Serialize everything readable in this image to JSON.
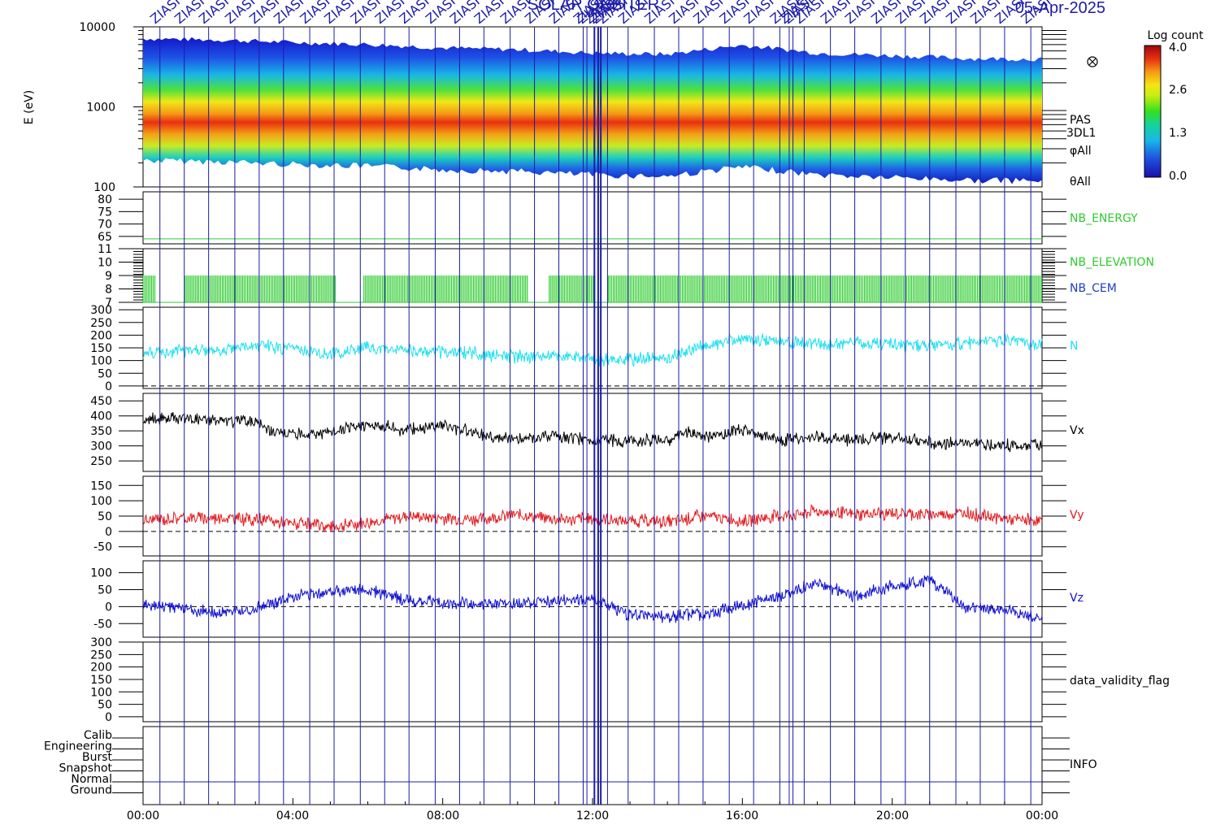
{
  "header": {
    "title_text": "SOLAR ORBITER",
    "date_text": "05-Apr-2025",
    "event_label": "ZIASI"
  },
  "colorbar": {
    "title": "Log count",
    "ticks": [
      "4.0",
      "2.6",
      "1.3",
      "0.0"
    ]
  },
  "time_axis": {
    "labels": [
      "00:00",
      "04:00",
      "08:00",
      "12:00",
      "16:00",
      "20:00",
      "00:00"
    ]
  },
  "colors": {
    "nb_energy": "#2ecc2e",
    "nb_cem": "#1f3fbf",
    "n": "#22e0ef",
    "vx": "#000000",
    "vy": "#e41a1c",
    "vz": "#1010d0",
    "event_line": "#1c1ca8"
  },
  "chart_data": {
    "type": "line",
    "time_range_hours": [
      0,
      24
    ],
    "spectrogram": {
      "ylabel": "E (eV)",
      "yscale": "log",
      "ylim": [
        100,
        10000
      ],
      "yticks": [
        "10000",
        "1000",
        "100"
      ],
      "right_labels": [
        "PAS",
        "3DL1",
        "φAll",
        "θAll"
      ],
      "zlim": [
        0.0,
        4.0
      ],
      "peak_energy_ev": [
        {
          "t": 0,
          "e": 850
        },
        {
          "t": 2,
          "e": 820
        },
        {
          "t": 4,
          "e": 760
        },
        {
          "t": 6,
          "e": 720
        },
        {
          "t": 8,
          "e": 650
        },
        {
          "t": 10,
          "e": 620
        },
        {
          "t": 12,
          "e": 560
        },
        {
          "t": 14,
          "e": 540
        },
        {
          "t": 16,
          "e": 700
        },
        {
          "t": 18,
          "e": 560
        },
        {
          "t": 20,
          "e": 520
        },
        {
          "t": 22,
          "e": 480
        },
        {
          "t": 24,
          "e": 470
        }
      ]
    },
    "panels": [
      {
        "name": "NB_ENERGY",
        "yticks": [
          "80",
          "75",
          "70",
          "65"
        ],
        "ylim": [
          62,
          83
        ],
        "value": 64
      },
      {
        "name": "NB_ELEVATION / NB_CEM",
        "labels": [
          "NB_ELEVATION",
          "NB_CEM"
        ],
        "yticks": [
          "11",
          "10",
          "9",
          "8",
          "7"
        ],
        "ylim": [
          7,
          11
        ],
        "value_range": [
          7,
          9
        ],
        "gaps_hours": [
          [
            0.35,
            1.1
          ],
          [
            5.15,
            5.85
          ],
          [
            10.3,
            10.8
          ],
          [
            12.1,
            12.4
          ]
        ]
      },
      {
        "name": "N",
        "yticks": [
          "300",
          "250",
          "200",
          "150",
          "100",
          "50",
          "0"
        ],
        "ylim": [
          -10,
          310
        ],
        "values": [
          [
            0,
            125
          ],
          [
            1,
            140
          ],
          [
            2,
            135
          ],
          [
            3,
            160
          ],
          [
            4,
            145
          ],
          [
            5,
            125
          ],
          [
            6,
            150
          ],
          [
            7,
            140
          ],
          [
            8,
            135
          ],
          [
            9,
            125
          ],
          [
            10,
            115
          ],
          [
            11,
            120
          ],
          [
            12,
            105
          ],
          [
            13,
            105
          ],
          [
            14,
            110
          ],
          [
            15,
            160
          ],
          [
            16,
            185
          ],
          [
            17,
            175
          ],
          [
            18,
            165
          ],
          [
            19,
            170
          ],
          [
            20,
            165
          ],
          [
            21,
            155
          ],
          [
            22,
            170
          ],
          [
            23,
            180
          ],
          [
            24,
            160
          ]
        ]
      },
      {
        "name": "Vx",
        "yticks": [
          "450",
          "400",
          "350",
          "300",
          "250"
        ],
        "ylim": [
          215,
          475
        ],
        "values": [
          [
            0,
            385
          ],
          [
            1,
            395
          ],
          [
            2,
            385
          ],
          [
            3,
            380
          ],
          [
            3.5,
            345
          ],
          [
            4,
            340
          ],
          [
            5,
            345
          ],
          [
            6,
            370
          ],
          [
            7,
            355
          ],
          [
            8,
            370
          ],
          [
            9,
            340
          ],
          [
            10,
            320
          ],
          [
            11,
            330
          ],
          [
            12,
            320
          ],
          [
            13,
            315
          ],
          [
            14,
            320
          ],
          [
            14.5,
            345
          ],
          [
            15,
            330
          ],
          [
            15.5,
            340
          ],
          [
            16,
            350
          ],
          [
            17,
            320
          ],
          [
            18,
            330
          ],
          [
            19,
            320
          ],
          [
            20,
            330
          ],
          [
            21,
            310
          ],
          [
            22,
            310
          ],
          [
            23,
            300
          ],
          [
            24,
            305
          ]
        ]
      },
      {
        "name": "Vy",
        "yticks": [
          "150",
          "100",
          "50",
          "0",
          "-50"
        ],
        "ylim": [
          -80,
          180
        ],
        "values": [
          [
            0,
            35
          ],
          [
            1,
            45
          ],
          [
            2,
            45
          ],
          [
            3,
            40
          ],
          [
            4,
            25
          ],
          [
            5,
            15
          ],
          [
            6,
            30
          ],
          [
            7,
            50
          ],
          [
            8,
            45
          ],
          [
            9,
            40
          ],
          [
            10,
            55
          ],
          [
            11,
            40
          ],
          [
            12,
            40
          ],
          [
            13,
            35
          ],
          [
            14,
            30
          ],
          [
            15,
            50
          ],
          [
            16,
            35
          ],
          [
            17,
            50
          ],
          [
            18,
            65
          ],
          [
            19,
            55
          ],
          [
            20,
            60
          ],
          [
            21,
            55
          ],
          [
            22,
            60
          ],
          [
            23,
            40
          ],
          [
            24,
            35
          ]
        ]
      },
      {
        "name": "Vz",
        "yticks": [
          "100",
          "50",
          "0",
          "-50"
        ],
        "ylim": [
          -90,
          135
        ],
        "values": [
          [
            0,
            5
          ],
          [
            1,
            -5
          ],
          [
            2,
            -20
          ],
          [
            3,
            -5
          ],
          [
            4,
            30
          ],
          [
            5,
            45
          ],
          [
            6,
            50
          ],
          [
            7,
            20
          ],
          [
            8,
            10
          ],
          [
            9,
            5
          ],
          [
            10,
            10
          ],
          [
            11,
            15
          ],
          [
            12,
            20
          ],
          [
            13,
            -25
          ],
          [
            14,
            -30
          ],
          [
            15,
            -20
          ],
          [
            16,
            5
          ],
          [
            17,
            30
          ],
          [
            18,
            70
          ],
          [
            19,
            30
          ],
          [
            20,
            60
          ],
          [
            21,
            80
          ],
          [
            22,
            -5
          ],
          [
            23,
            -10
          ],
          [
            24,
            -35
          ]
        ]
      },
      {
        "name": "data_validity_flag",
        "yticks": [
          "300",
          "250",
          "200",
          "150",
          "100",
          "50",
          "0"
        ],
        "ylim": [
          -20,
          300
        ]
      },
      {
        "name": "INFO",
        "yticks": [
          "Calib",
          "Engineering",
          "Burst",
          "Snapshot",
          "Normal",
          "Ground"
        ],
        "value": "Normal"
      }
    ],
    "event_lines_hours": [
      0.45,
      1.1,
      1.75,
      2.45,
      3.1,
      3.75,
      4.45,
      5.1,
      5.8,
      6.45,
      7.1,
      7.8,
      8.45,
      9.1,
      9.8,
      10.45,
      11.1,
      11.75,
      11.85,
      12.05,
      12.15,
      12.22,
      12.4,
      12.95,
      13.65,
      14.3,
      14.95,
      15.65,
      16.3,
      17.0,
      17.25,
      17.35,
      17.65,
      18.35,
      19.0,
      19.7,
      20.35,
      21.0,
      21.7,
      22.35,
      23.0,
      23.7
    ]
  }
}
